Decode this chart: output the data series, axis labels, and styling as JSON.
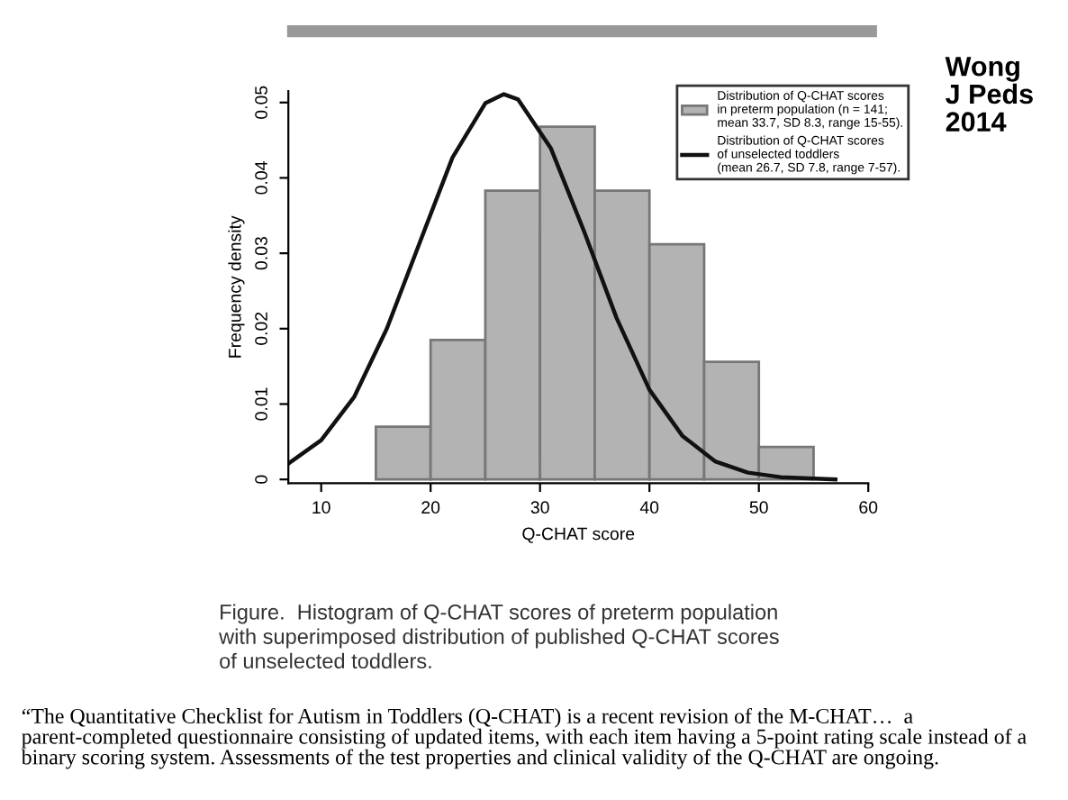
{
  "chart_data": {
    "type": "histogram",
    "xlabel": "Q-CHAT score",
    "ylabel": "Frequency density",
    "bins": [
      15,
      20,
      25,
      30,
      35,
      40,
      45,
      50,
      55
    ],
    "series": [
      {
        "name": "Distribution of Q-CHAT scores\nin preterm population (n = 141;\nmean 33.7, SD 8.3, range 15-55).",
        "color": "#b3b3b3",
        "values": [
          0.007,
          0.0185,
          0.0383,
          0.0468,
          0.0383,
          0.0312,
          0.0156,
          0.0043
        ]
      },
      {
        "type": "line",
        "name": "Distribution of Q-CHAT scores\nof unselected toddlers\n(mean 26.7, SD 7.8, range 7-57).",
        "color": "#111111",
        "x": [
          7,
          10,
          13,
          16,
          19,
          22,
          25,
          26.7,
          28,
          31,
          34,
          37,
          40,
          43,
          46,
          49,
          52,
          57
        ],
        "values": [
          0.0021,
          0.0052,
          0.0109,
          0.02,
          0.0314,
          0.0427,
          0.0499,
          0.0511,
          0.0504,
          0.0439,
          0.033,
          0.0214,
          0.0119,
          0.0058,
          0.0024,
          0.0009,
          0.0003,
          0.0
        ]
      }
    ],
    "xlim": [
      7,
      60
    ],
    "xticks": [
      10,
      20,
      30,
      40,
      50,
      60
    ],
    "ylim": [
      -0.0005,
      0.0515
    ],
    "yticks": [
      0,
      0.01,
      0.02,
      0.03,
      0.04,
      0.05
    ],
    "grid": false,
    "legend": "top right",
    "annotations": [
      "Wong\nJ Peds\n2014",
      "Figure.  Histogram of Q-CHAT scores of preterm population\nwith superimposed distribution of published Q-CHAT scores\nof unselected toddlers.",
      "“The Quantitative Checklist for Autism in Toddlers (Q-CHAT) is a recent revision of the M-CHAT…  a parent-completed questionnaire consisting of updated items, with each item having a 5-point rating scale instead of a binary scoring system. Assessments of the test properties and clinical validity of the Q-CHAT are ongoing."
    ]
  }
}
